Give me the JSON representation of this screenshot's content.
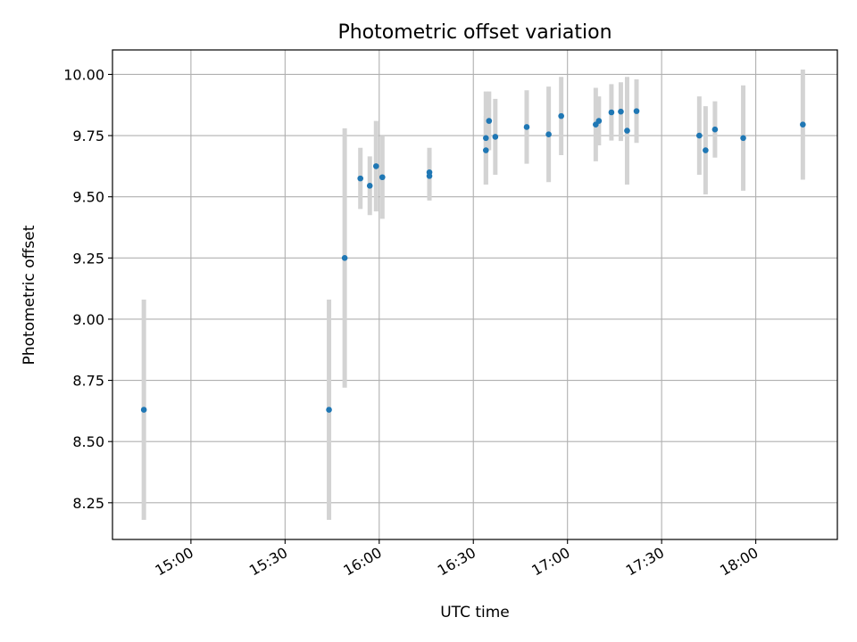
{
  "chart_data": {
    "type": "scatter",
    "title": "Photometric offset variation",
    "xlabel": "UTC time",
    "ylabel": "Photometric offset",
    "x_axis_type": "time",
    "xlim": [
      "14:35",
      "18:26"
    ],
    "ylim": [
      8.1,
      10.1
    ],
    "x_ticks": [
      "15:00",
      "15:30",
      "16:00",
      "16:30",
      "17:00",
      "17:30",
      "18:00"
    ],
    "y_ticks": [
      "8.25",
      "8.50",
      "8.75",
      "9.00",
      "9.25",
      "9.50",
      "9.75",
      "10.00"
    ],
    "grid": true,
    "legend": "none",
    "point_color": "#1f77b4",
    "errorbar_color": "#d3d3d3",
    "series": [
      {
        "points": [
          {
            "x": "14:45",
            "y": 8.63,
            "err": 0.45
          },
          {
            "x": "15:44",
            "y": 8.63,
            "err": 0.45
          },
          {
            "x": "15:49",
            "y": 9.25,
            "err": 0.53
          },
          {
            "x": "15:54",
            "y": 9.575,
            "err": 0.125
          },
          {
            "x": "15:57",
            "y": 9.545,
            "err": 0.12
          },
          {
            "x": "15:59",
            "y": 9.625,
            "err": 0.185
          },
          {
            "x": "16:01",
            "y": 9.58,
            "err": 0.17
          },
          {
            "x": "16:16",
            "y": 9.6,
            "err": 0.1
          },
          {
            "x": "16:16",
            "y": 9.585,
            "err": 0.1
          },
          {
            "x": "16:34",
            "y": 9.69,
            "err": 0.14
          },
          {
            "x": "16:34",
            "y": 9.74,
            "err": 0.19
          },
          {
            "x": "16:35",
            "y": 9.81,
            "err": 0.12
          },
          {
            "x": "16:37",
            "y": 9.745,
            "err": 0.155
          },
          {
            "x": "16:47",
            "y": 9.785,
            "err": 0.15
          },
          {
            "x": "16:54",
            "y": 9.755,
            "err": 0.195
          },
          {
            "x": "16:58",
            "y": 9.83,
            "err": 0.16
          },
          {
            "x": "17:09",
            "y": 9.795,
            "err": 0.15
          },
          {
            "x": "17:10",
            "y": 9.81,
            "err": 0.1
          },
          {
            "x": "17:14",
            "y": 9.845,
            "err": 0.115
          },
          {
            "x": "17:17",
            "y": 9.848,
            "err": 0.12
          },
          {
            "x": "17:19",
            "y": 9.77,
            "err": 0.22
          },
          {
            "x": "17:22",
            "y": 9.85,
            "err": 0.13
          },
          {
            "x": "17:42",
            "y": 9.75,
            "err": 0.16
          },
          {
            "x": "17:44",
            "y": 9.69,
            "err": 0.18
          },
          {
            "x": "17:47",
            "y": 9.775,
            "err": 0.115
          },
          {
            "x": "17:56",
            "y": 9.74,
            "err": 0.215
          },
          {
            "x": "18:15",
            "y": 9.795,
            "err": 0.225
          }
        ]
      }
    ]
  }
}
